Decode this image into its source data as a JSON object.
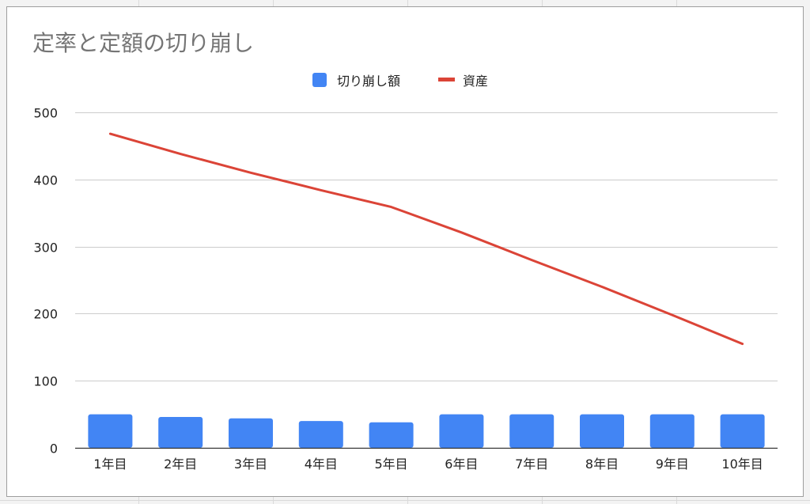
{
  "chart_data": {
    "type": "bar",
    "title": "定率と定額の切り崩し",
    "xlabel": "",
    "ylabel": "",
    "categories": [
      "1年目",
      "2年目",
      "3年目",
      "4年目",
      "5年目",
      "6年目",
      "7年目",
      "8年目",
      "9年目",
      "10年目"
    ],
    "ylim": [
      0,
      500
    ],
    "yticks": [
      0,
      100,
      200,
      300,
      400,
      500
    ],
    "grid": true,
    "legend_position": "top",
    "series": [
      {
        "name": "切り崩し額",
        "type": "bar",
        "color": "#4285f4",
        "values": [
          50,
          46,
          44,
          40,
          38,
          50,
          50,
          50,
          50,
          50
        ]
      },
      {
        "name": "資産",
        "type": "line",
        "color": "#db4437",
        "values": [
          468,
          438,
          410,
          384,
          359,
          321,
          280,
          240,
          198,
          155
        ]
      }
    ]
  }
}
